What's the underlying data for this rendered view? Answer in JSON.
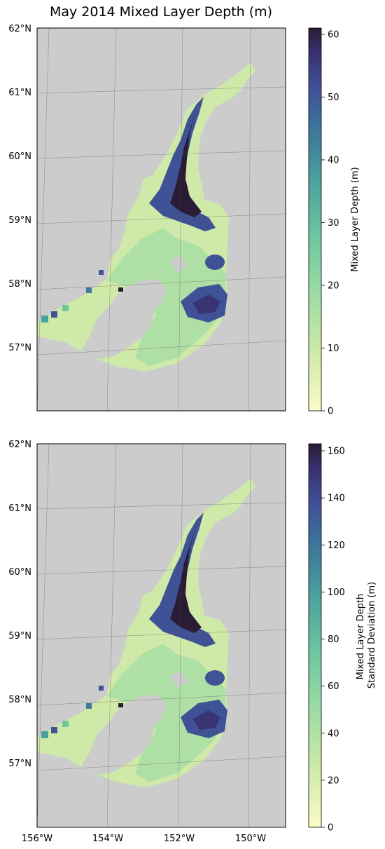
{
  "title": "May 2014 Mixed Layer Depth (m)",
  "lat_labels": [
    "62°N",
    "61°N",
    "60°N",
    "59°N",
    "58°N",
    "57°N"
  ],
  "lon_labels": [
    "156°W",
    "154°W",
    "152°W",
    "150°W"
  ],
  "panels": [
    {
      "colorbar": {
        "label_lines": [
          "Mixed Layer Depth (m)"
        ],
        "ticks": [
          "0",
          "10",
          "20",
          "30",
          "40",
          "50",
          "60"
        ],
        "range": [
          0,
          61
        ]
      }
    },
    {
      "colorbar": {
        "label_lines": [
          "Mixed Layer Depth",
          "Standard Deviation (m)"
        ],
        "ticks": [
          "0",
          "20",
          "40",
          "60",
          "80",
          "100",
          "120",
          "140",
          "160"
        ],
        "range": [
          0,
          163
        ]
      }
    }
  ],
  "colors": {
    "land": "#cccccc",
    "ocean_masked": "#ffffff",
    "colormap": [
      "#fcfbc6",
      "#cfeaa8",
      "#9fdca4",
      "#6fc7a0",
      "#4aa29d",
      "#3e7b9b",
      "#3f5296",
      "#3a3374",
      "#2a1b36"
    ]
  }
}
